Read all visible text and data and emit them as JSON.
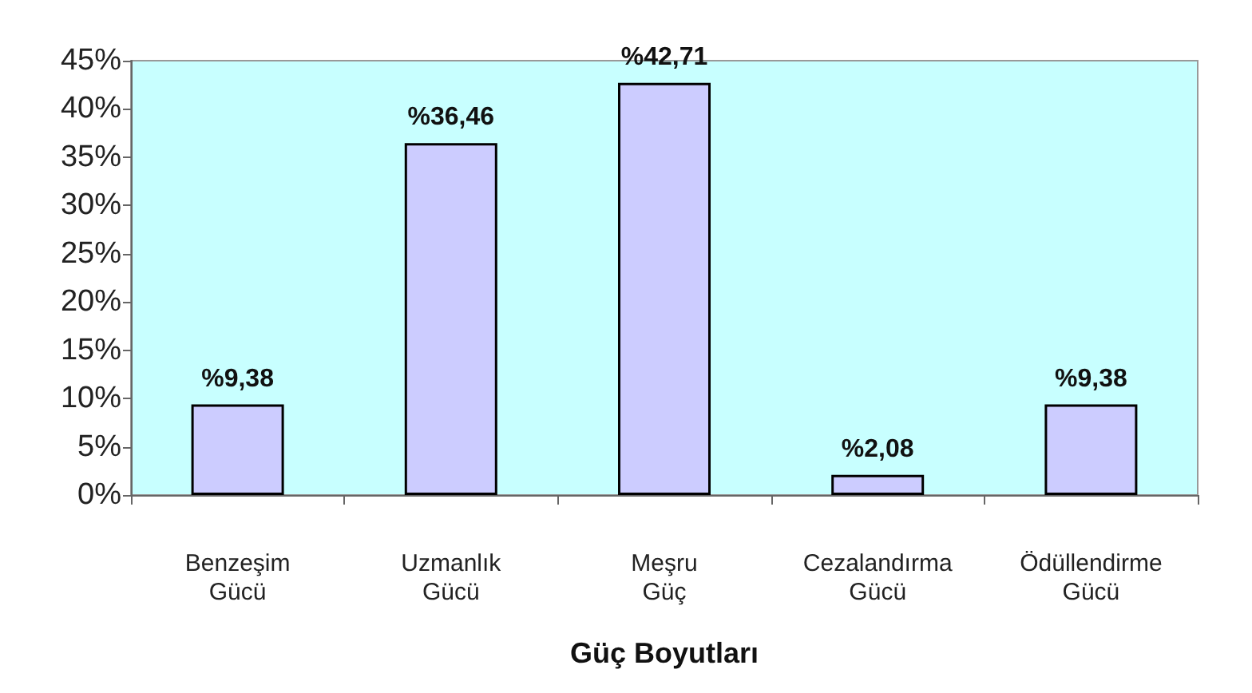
{
  "chart_data": {
    "type": "bar",
    "xlabel": "Güç Boyutları",
    "categories": [
      "Benzeşim\nGücü",
      "Uzmanlık\nGücü",
      "Meşru\nGüç",
      "Cezalandırma\nGücü",
      "Ödüllendirme\nGücü"
    ],
    "values": [
      9.38,
      36.46,
      42.71,
      2.08,
      9.38
    ],
    "color": "#ccccff",
    "value_labels": [
      "%9,38",
      "%36,46",
      "%42,71",
      "%2,08",
      "%9,38"
    ],
    "ylim": [
      0,
      45
    ],
    "yticks": [
      {
        "value": 0,
        "label": "0%"
      },
      {
        "value": 5,
        "label": "5%"
      },
      {
        "value": 10,
        "label": "10%"
      },
      {
        "value": 15,
        "label": "15%"
      },
      {
        "value": 20,
        "label": "20%"
      },
      {
        "value": 25,
        "label": "25%"
      },
      {
        "value": 30,
        "label": "30%"
      },
      {
        "value": 35,
        "label": "35%"
      },
      {
        "value": 40,
        "label": "40%"
      },
      {
        "value": 45,
        "label": "45%"
      }
    ]
  }
}
